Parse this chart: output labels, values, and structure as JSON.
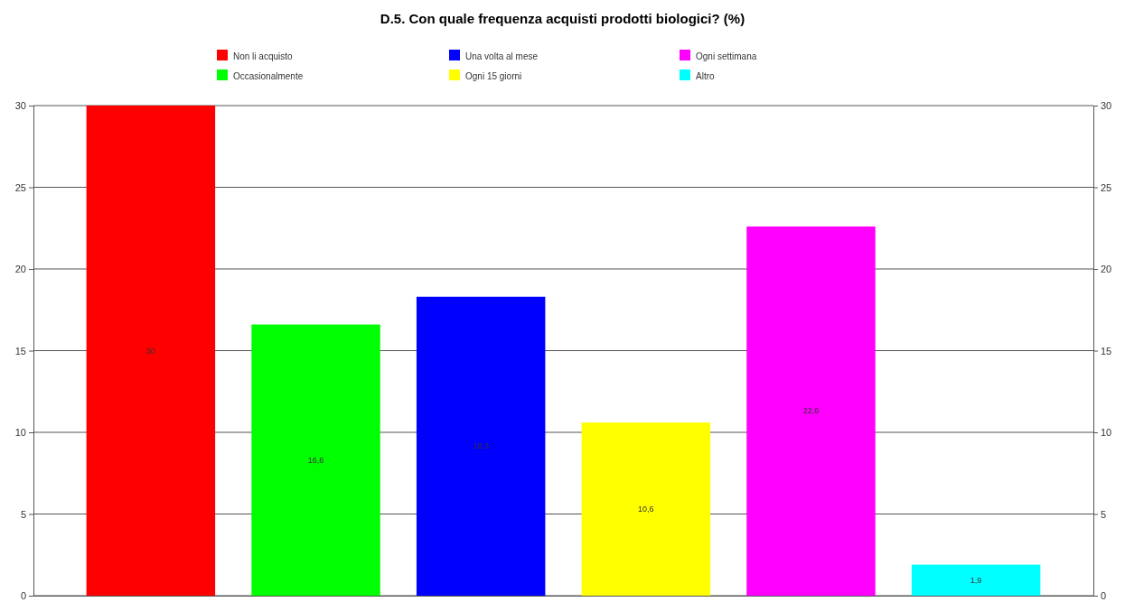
{
  "chart_data": {
    "type": "bar",
    "title": "D.5. Con quale frequenza acquisti prodotti biologici? (%)",
    "categories": [
      null
    ],
    "series": [
      {
        "name": "Non li acquisto",
        "color": "#ff0000",
        "values": [
          30
        ],
        "value_labels": [
          "30"
        ]
      },
      {
        "name": "Occasionalmente",
        "color": "#00ff00",
        "values": [
          16.6
        ],
        "value_labels": [
          "16,6"
        ]
      },
      {
        "name": "Una volta al mese",
        "color": "#0000ff",
        "values": [
          18.3
        ],
        "value_labels": [
          "18,3"
        ]
      },
      {
        "name": "Ogni 15 giorni",
        "color": "#ffff00",
        "values": [
          10.6
        ],
        "value_labels": [
          "10,6"
        ]
      },
      {
        "name": "Ogni settimana",
        "color": "#ff00ff",
        "values": [
          22.6
        ],
        "value_labels": [
          "22,6"
        ]
      },
      {
        "name": "Altro",
        "color": "#00ffff",
        "values": [
          1.9
        ],
        "value_labels": [
          "1,9"
        ]
      }
    ],
    "ylim": [
      0,
      30
    ],
    "yticks": [
      0,
      5,
      10,
      15,
      20,
      25,
      30
    ],
    "y2lim": [
      0,
      30
    ],
    "y2ticks": [
      0,
      5,
      10,
      15,
      20,
      25,
      30
    ],
    "grid": "y",
    "legend": "top",
    "tick_labels": "y"
  }
}
